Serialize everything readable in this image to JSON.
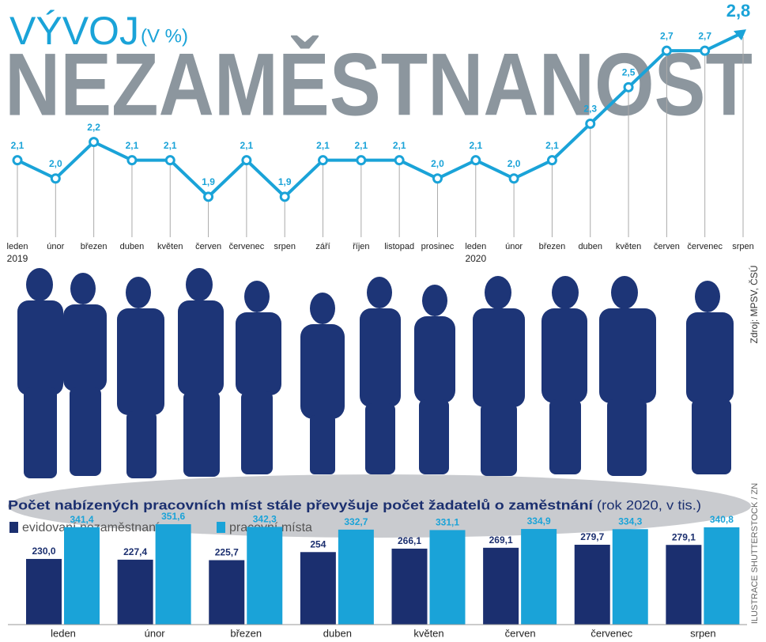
{
  "chart_data": [
    {
      "type": "line",
      "title": "NEZAMĚSTNANOST",
      "supertitle": "VÝVOJ",
      "unit_label": "(V %)",
      "source": "Zdroj: MPSV, ČSÚ",
      "categories": [
        "leden",
        "únor",
        "březen",
        "duben",
        "květen",
        "červen",
        "červenec",
        "srpen",
        "září",
        "říjen",
        "listopad",
        "prosinec",
        "leden",
        "únor",
        "březen",
        "duben",
        "květen",
        "červen",
        "červenec",
        "srpen"
      ],
      "category_years": [
        "2019",
        null,
        null,
        null,
        null,
        null,
        null,
        null,
        null,
        null,
        null,
        null,
        "2020",
        null,
        null,
        null,
        null,
        null,
        null,
        null
      ],
      "values": [
        2.1,
        2.0,
        2.2,
        2.1,
        2.1,
        1.9,
        2.1,
        1.9,
        2.1,
        2.1,
        2.1,
        2.0,
        2.1,
        2.0,
        2.1,
        2.3,
        2.5,
        2.7,
        2.7,
        2.8
      ],
      "value_labels": [
        "2,1",
        "2,0",
        "2,2",
        "2,1",
        "2,1",
        "1,9",
        "2,1",
        "1,9",
        "2,1",
        "2,1",
        "2,1",
        "2,0",
        "2,1",
        "2,0",
        "2,1",
        "2,3",
        "2,5",
        "2,7",
        "2,7",
        "2,8"
      ],
      "color": "#1aa3d8",
      "ylim": [
        1.7,
        2.9
      ]
    },
    {
      "type": "bar",
      "title": "Počet nabízených pracovních míst stále převyšuje počet žadatelů o zaměstnání",
      "subtitle": "(rok 2020, v tis.)",
      "credit": "ILUSTRACE SHUTTERSTOCK / ZN",
      "categories": [
        "leden",
        "únor",
        "březen",
        "duben",
        "květen",
        "červen",
        "červenec",
        "srpen"
      ],
      "series": [
        {
          "name": "evidovaní nezaměstnaní",
          "color": "#1b2f6f",
          "values": [
            230.0,
            227.4,
            225.7,
            254,
            266.1,
            269.1,
            279.7,
            279.1
          ],
          "value_labels": [
            "230,0",
            "227,4",
            "225,7",
            "254",
            "266,1",
            "269,1",
            "279,7",
            "279,1"
          ]
        },
        {
          "name": "pracovní místa",
          "color": "#1aa3d8",
          "values": [
            341.4,
            351.6,
            342.3,
            332.7,
            331.1,
            334.9,
            334.3,
            340.8
          ],
          "value_labels": [
            "341,4",
            "351,6",
            "342,3",
            "332,7",
            "331,1",
            "334,9",
            "334,3",
            "340,8"
          ]
        }
      ],
      "ylim": [
        0,
        360
      ]
    }
  ]
}
